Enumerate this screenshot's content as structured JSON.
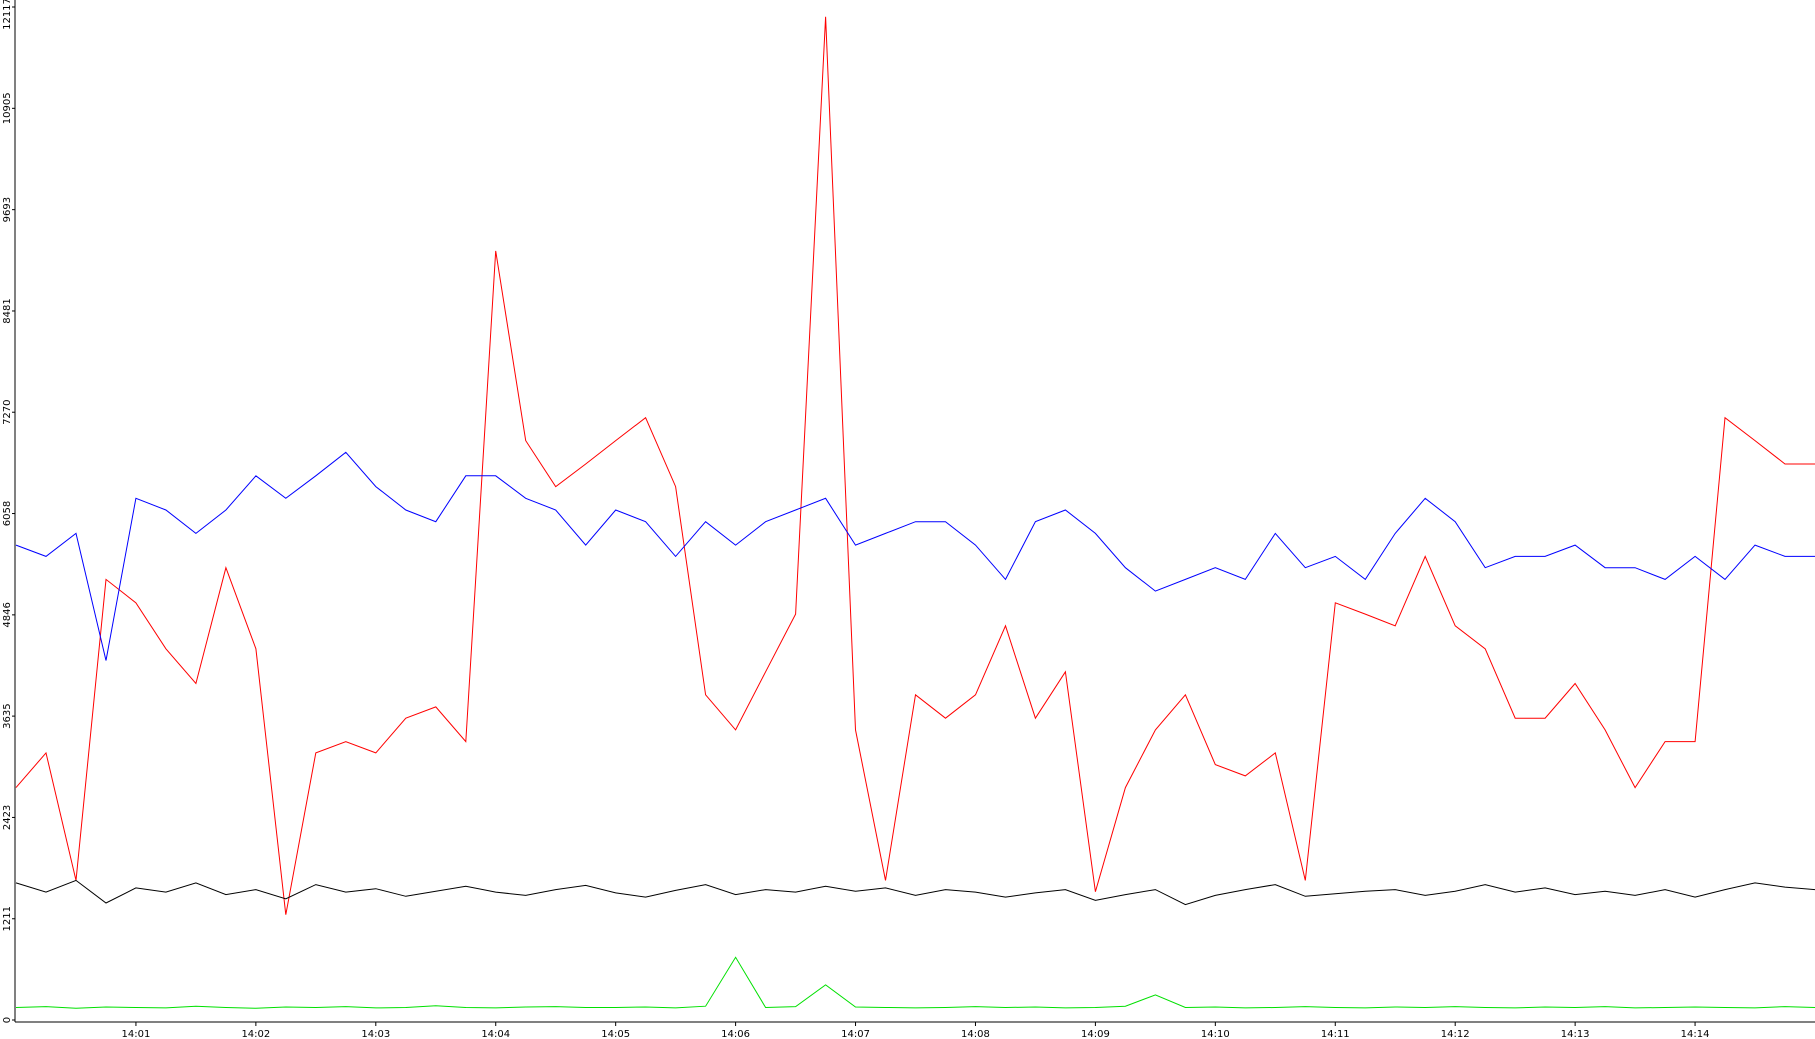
{
  "chart_data": {
    "type": "line",
    "x": [
      "14:00:00",
      "14:00:15",
      "14:00:30",
      "14:00:45",
      "14:01:00",
      "14:01:15",
      "14:01:30",
      "14:01:45",
      "14:02:00",
      "14:02:15",
      "14:02:30",
      "14:02:45",
      "14:03:00",
      "14:03:15",
      "14:03:30",
      "14:03:45",
      "14:04:00",
      "14:04:15",
      "14:04:30",
      "14:04:45",
      "14:05:00",
      "14:05:15",
      "14:05:30",
      "14:05:45",
      "14:06:00",
      "14:06:15",
      "14:06:30",
      "14:06:45",
      "14:07:00",
      "14:07:15",
      "14:07:30",
      "14:07:45",
      "14:08:00",
      "14:08:15",
      "14:08:30",
      "14:08:45",
      "14:09:00",
      "14:09:15",
      "14:09:30",
      "14:09:45",
      "14:10:00",
      "14:10:15",
      "14:10:30",
      "14:10:45",
      "14:11:00",
      "14:11:15",
      "14:11:30",
      "14:11:45",
      "14:12:00",
      "14:12:15",
      "14:12:30",
      "14:12:45",
      "14:13:00",
      "14:13:15",
      "14:13:30",
      "14:13:45",
      "14:14:00",
      "14:14:15",
      "14:14:30",
      "14:14:45",
      "14:15:00"
    ],
    "xlim": [
      "14:00:00",
      "14:15:00"
    ],
    "xticks": [
      "14:01",
      "14:02",
      "14:03",
      "14:04",
      "14:05",
      "14:06",
      "14:07",
      "14:08",
      "14:09",
      "14:10",
      "14:11",
      "14:12",
      "14:13",
      "14:14"
    ],
    "ylim": [
      0,
      12117
    ],
    "yticks": [
      0,
      1211,
      2423,
      3635,
      4846,
      6058,
      7270,
      8481,
      9693,
      10905,
      12117
    ],
    "series": [
      {
        "color": "#ff0000",
        "values": [
          2780,
          3195,
          1670,
          5270,
          4990,
          4440,
          4025,
          5410,
          4440,
          1260,
          3195,
          3330,
          3195,
          3610,
          3745,
          3330,
          9200,
          6930,
          6380,
          6650,
          6930,
          7205,
          6380,
          3890,
          3470,
          4165,
          4855,
          12000,
          3470,
          1670,
          3890,
          3610,
          3890,
          4715,
          3610,
          4165,
          1535,
          2780,
          3470,
          3890,
          3055,
          2920,
          3195,
          1670,
          4990,
          4855,
          4715,
          5545,
          4715,
          4440,
          3610,
          3610,
          4025,
          3470,
          2780,
          3330,
          3330,
          7205,
          6930,
          6650,
          6650
        ]
      },
      {
        "color": "#0000ff",
        "values": [
          5680,
          5545,
          5820,
          4300,
          6240,
          6100,
          5820,
          6100,
          6510,
          6240,
          6510,
          6790,
          6380,
          6100,
          5960,
          6510,
          6510,
          6240,
          6100,
          5680,
          6100,
          5960,
          5545,
          5960,
          5680,
          5960,
          6100,
          6240,
          5680,
          5820,
          5960,
          5960,
          5680,
          5270,
          5960,
          6100,
          5820,
          5410,
          5130,
          5270,
          5410,
          5270,
          5820,
          5410,
          5545,
          5270,
          5820,
          6240,
          5960,
          5410,
          5545,
          5545,
          5680,
          5410,
          5410,
          5270,
          5545,
          5270,
          5680,
          5545,
          5545
        ]
      },
      {
        "color": "#000000",
        "values": [
          1640,
          1530,
          1670,
          1400,
          1580,
          1530,
          1640,
          1500,
          1560,
          1450,
          1620,
          1530,
          1570,
          1480,
          1540,
          1600,
          1530,
          1490,
          1560,
          1610,
          1520,
          1470,
          1550,
          1620,
          1500,
          1560,
          1530,
          1600,
          1540,
          1580,
          1490,
          1560,
          1530,
          1470,
          1520,
          1560,
          1430,
          1500,
          1560,
          1380,
          1490,
          1560,
          1620,
          1480,
          1510,
          1540,
          1560,
          1490,
          1540,
          1620,
          1530,
          1580,
          1500,
          1540,
          1490,
          1560,
          1470,
          1560,
          1640,
          1590,
          1560
        ]
      },
      {
        "color": "#00e000",
        "values": [
          150,
          160,
          140,
          155,
          150,
          145,
          165,
          150,
          140,
          155,
          150,
          160,
          145,
          150,
          170,
          150,
          145,
          155,
          160,
          150,
          150,
          155,
          145,
          165,
          750,
          150,
          160,
          420,
          155,
          150,
          145,
          150,
          160,
          150,
          155,
          145,
          150,
          165,
          300,
          150,
          155,
          145,
          150,
          160,
          150,
          145,
          155,
          150,
          160,
          150,
          145,
          155,
          150,
          160,
          145,
          150,
          155,
          150,
          145,
          160,
          150
        ]
      }
    ]
  }
}
